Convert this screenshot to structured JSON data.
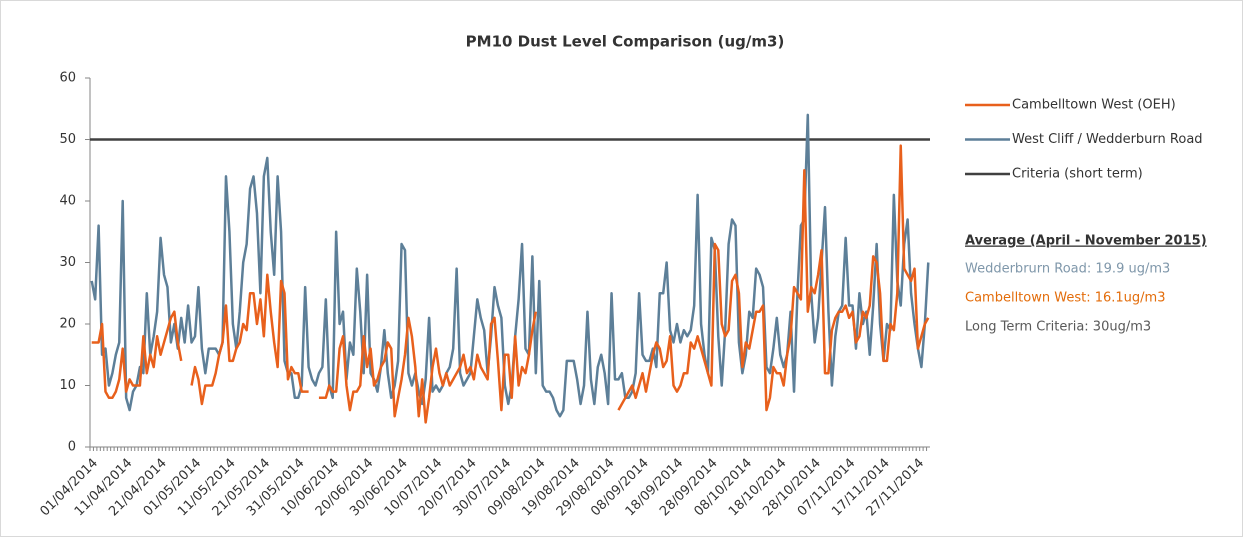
{
  "chart_data": {
    "type": "line",
    "title": "PM10 Dust Level Comparison (ug/m3)",
    "categories": [
      "01/04/2014",
      null,
      null,
      null,
      null,
      null,
      null,
      null,
      null,
      null,
      "11/04/2014",
      null,
      null,
      null,
      null,
      null,
      null,
      null,
      null,
      null,
      "21/04/2014",
      null,
      null,
      null,
      null,
      null,
      null,
      null,
      null,
      null,
      "01/05/2014",
      null,
      null,
      null,
      null,
      null,
      null,
      null,
      null,
      null,
      "11/05/2014",
      null,
      null,
      null,
      null,
      null,
      null,
      null,
      null,
      null,
      "21/05/2014",
      null,
      null,
      null,
      null,
      null,
      null,
      null,
      null,
      null,
      "31/05/2014",
      null,
      null,
      null,
      null,
      null,
      null,
      null,
      null,
      null,
      "10/06/2014",
      null,
      null,
      null,
      null,
      null,
      null,
      null,
      null,
      null,
      "20/06/2014",
      null,
      null,
      null,
      null,
      null,
      null,
      null,
      null,
      null,
      "30/06/2014",
      null,
      null,
      null,
      null,
      null,
      null,
      null,
      null,
      null,
      "10/07/2014",
      null,
      null,
      null,
      null,
      null,
      null,
      null,
      null,
      null,
      "20/07/2014",
      null,
      null,
      null,
      null,
      null,
      null,
      null,
      null,
      null,
      "30/07/2014",
      null,
      null,
      null,
      null,
      null,
      null,
      null,
      null,
      null,
      "09/08/2014",
      null,
      null,
      null,
      null,
      null,
      null,
      null,
      null,
      null,
      "19/08/2014",
      null,
      null,
      null,
      null,
      null,
      null,
      null,
      null,
      null,
      "29/08/2014",
      null,
      null,
      null,
      null,
      null,
      null,
      null,
      null,
      null,
      "08/09/2014",
      null,
      null,
      null,
      null,
      null,
      null,
      null,
      null,
      null,
      "18/09/2014",
      null,
      null,
      null,
      null,
      null,
      null,
      null,
      null,
      null,
      "28/09/2014",
      null,
      null,
      null,
      null,
      null,
      null,
      null,
      null,
      null,
      "08/10/2014",
      null,
      null,
      null,
      null,
      null,
      null,
      null,
      null,
      null,
      "18/10/2014",
      null,
      null,
      null,
      null,
      null,
      null,
      null,
      null,
      null,
      "28/10/2014",
      null,
      null,
      null,
      null,
      null,
      null,
      null,
      null,
      null,
      "07/11/2014",
      null,
      null,
      null,
      null,
      null,
      null,
      null,
      null,
      null,
      "17/11/2014",
      null,
      null,
      null,
      null,
      null,
      null,
      null,
      null,
      null,
      "27/11/2014",
      null,
      null,
      null
    ],
    "series": [
      {
        "name": "Cambelltown West (OEH)",
        "color": "#e8601c",
        "values": [
          17,
          17,
          17,
          20,
          9,
          8,
          8,
          9,
          11,
          16,
          9,
          11,
          10,
          10,
          10,
          18,
          12,
          15,
          13,
          18,
          15,
          17,
          19,
          21,
          22,
          17,
          14,
          null,
          null,
          10,
          13,
          11,
          7,
          10,
          10,
          10,
          12,
          15,
          17,
          23,
          14,
          14,
          16,
          17,
          20,
          19,
          25,
          25,
          20,
          24,
          18,
          28,
          22,
          17,
          13,
          27,
          25,
          11,
          13,
          12,
          12,
          9,
          9,
          9,
          null,
          null,
          8,
          8,
          8,
          10,
          9,
          9,
          16,
          18,
          10,
          6,
          9,
          9,
          10,
          18,
          13,
          16,
          10,
          11,
          13,
          14,
          17,
          16,
          5,
          8,
          11,
          15,
          21,
          18,
          13,
          5,
          11,
          4,
          8,
          13,
          16,
          12,
          10,
          12,
          10,
          11,
          12,
          13,
          15,
          12,
          13,
          11,
          15,
          13,
          12,
          11,
          20,
          21,
          14,
          6,
          15,
          15,
          8,
          18,
          10,
          13,
          12,
          15,
          19,
          22,
          null,
          null,
          null,
          null,
          null,
          null,
          null,
          null,
          null,
          null,
          null,
          null,
          null,
          null,
          null,
          null,
          null,
          null,
          null,
          null,
          null,
          null,
          null,
          6,
          7,
          8,
          9,
          10,
          8,
          10,
          12,
          9,
          12,
          15,
          17,
          16,
          13,
          14,
          18,
          10,
          9,
          10,
          12,
          12,
          17,
          16,
          18,
          16,
          14,
          12,
          10,
          33,
          32,
          20,
          18,
          19,
          27,
          28,
          25,
          13,
          17,
          16,
          19,
          22,
          22,
          23,
          6,
          8,
          13,
          12,
          12,
          10,
          15,
          18,
          26,
          25,
          24,
          45,
          22,
          26,
          25,
          28,
          32,
          12,
          12,
          19,
          21,
          22,
          22,
          23,
          21,
          22,
          17,
          18,
          22,
          21,
          23,
          31,
          30,
          25,
          14,
          14,
          20,
          19,
          25,
          49,
          29,
          28,
          27,
          29,
          16,
          18,
          20,
          21
        ]
      },
      {
        "name": "West Cliff / Wedderburn Road",
        "color": "#5d7f98",
        "values": [
          27,
          24,
          36,
          15,
          16,
          10,
          12,
          15,
          17,
          40,
          8,
          6,
          9,
          10,
          13,
          12,
          25,
          15,
          18,
          22,
          34,
          28,
          26,
          17,
          20,
          16,
          21,
          17,
          23,
          17,
          18,
          26,
          16,
          12,
          16,
          16,
          16,
          15,
          17,
          44,
          35,
          20,
          16,
          22,
          30,
          33,
          42,
          44,
          38,
          25,
          44,
          47,
          35,
          28,
          44,
          35,
          14,
          12,
          12,
          8,
          8,
          10,
          26,
          13,
          11,
          10,
          12,
          13,
          24,
          10,
          8,
          35,
          20,
          22,
          11,
          17,
          15,
          29,
          22,
          12,
          28,
          12,
          11,
          9,
          13,
          19,
          12,
          8,
          10,
          14,
          33,
          32,
          12,
          10,
          12,
          9,
          7,
          11,
          21,
          9,
          10,
          9,
          10,
          12,
          13,
          16,
          29,
          12,
          10,
          11,
          12,
          18,
          24,
          21,
          19,
          12,
          18,
          26,
          23,
          21,
          10,
          7,
          10,
          18,
          24,
          33,
          16,
          15,
          31,
          12,
          27,
          10,
          9,
          9,
          8,
          6,
          5,
          6,
          14,
          14,
          14,
          11,
          7,
          10,
          22,
          11,
          7,
          13,
          15,
          12,
          7,
          25,
          11,
          11,
          12,
          8,
          8,
          9,
          12,
          25,
          15,
          14,
          14,
          16,
          13,
          25,
          25,
          30,
          19,
          17,
          20,
          17,
          19,
          18,
          19,
          23,
          41,
          20,
          15,
          12,
          34,
          32,
          18,
          10,
          19,
          33,
          37,
          36,
          17,
          12,
          15,
          22,
          21,
          29,
          28,
          26,
          13,
          12,
          16,
          21,
          15,
          13,
          15,
          22,
          9,
          25,
          36,
          37,
          54,
          25,
          17,
          21,
          30,
          39,
          22,
          10,
          18,
          22,
          23,
          34,
          23,
          23,
          16,
          25,
          20,
          22,
          15,
          23,
          33,
          20,
          14,
          20,
          19,
          41,
          27,
          23,
          33,
          37,
          25,
          20,
          16,
          13,
          20,
          30
        ]
      }
    ],
    "reference_line": {
      "name": "Criteria (short term)",
      "color": "#404040",
      "value": 50
    },
    "ylim": [
      0,
      60
    ],
    "yticks": [
      0,
      10,
      20,
      30,
      40,
      50,
      60
    ],
    "annotation": {
      "title": "Average (April - November 2015)",
      "lines": [
        {
          "text": "Wedderbrurn Road: 19.9 ug/m3",
          "color": "#7f97aa"
        },
        {
          "text": "Cambelltown West: 16.1ug/m3",
          "color": "#e36c0a"
        },
        {
          "text": "Long Term Criteria: 30ug/m3",
          "color": "#595959"
        }
      ]
    }
  }
}
